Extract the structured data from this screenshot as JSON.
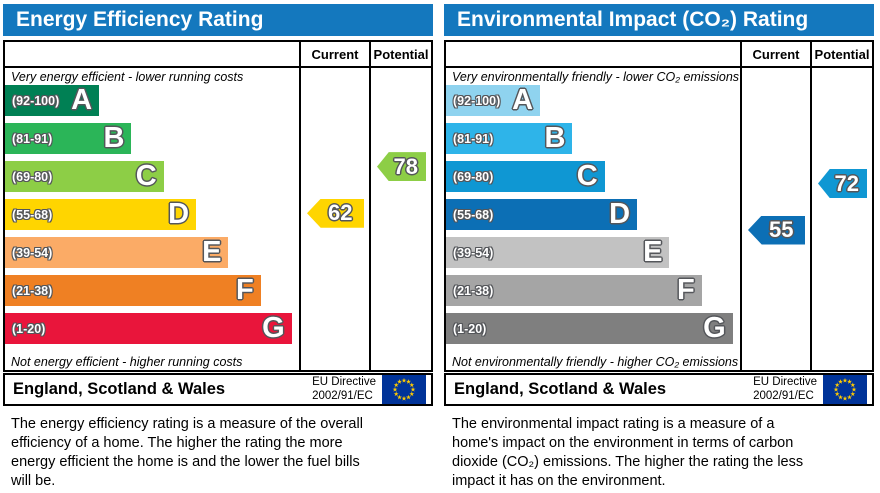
{
  "panels": [
    {
      "title": "Energy Efficiency Rating",
      "columns": {
        "current": "Current",
        "potential": "Potential"
      },
      "top_note": "Very energy efficient - lower running costs",
      "bottom_note": "Not energy efficient - higher running costs",
      "bands": [
        {
          "letter": "A",
          "range": "(92-100)",
          "lo": 92,
          "hi": 100,
          "color": "#008054",
          "width_pct": 32
        },
        {
          "letter": "B",
          "range": "(81-91)",
          "lo": 81,
          "hi": 91,
          "color": "#2bb558",
          "width_pct": 43
        },
        {
          "letter": "C",
          "range": "(69-80)",
          "lo": 69,
          "hi": 80,
          "color": "#8dce46",
          "width_pct": 54
        },
        {
          "letter": "D",
          "range": "(55-68)",
          "lo": 55,
          "hi": 68,
          "color": "#ffd500",
          "width_pct": 65
        },
        {
          "letter": "E",
          "range": "(39-54)",
          "lo": 39,
          "hi": 54,
          "color": "#fbab66",
          "width_pct": 76
        },
        {
          "letter": "F",
          "range": "(21-38)",
          "lo": 21,
          "hi": 38,
          "color": "#ef8023",
          "width_pct": 87
        },
        {
          "letter": "G",
          "range": "(1-20)",
          "lo": 1,
          "hi": 20,
          "color": "#e9153b",
          "width_pct": 97.5
        }
      ],
      "current": {
        "value": 62,
        "band": "D"
      },
      "potential": {
        "value": 78,
        "band": "C"
      },
      "footer": {
        "region": "England, Scotland & Wales",
        "directive_line1": "EU Directive",
        "directive_line2": "2002/91/EC"
      },
      "description": "The energy efficiency rating is a measure of the overall efficiency of a home. The higher the rating the more energy efficient the home is and the lower the fuel bills will be."
    },
    {
      "title": "Environmental Impact (CO₂) Rating",
      "columns": {
        "current": "Current",
        "potential": "Potential"
      },
      "top_note": "Very environmentally friendly - lower CO₂ emissions",
      "bottom_note": "Not environmentally friendly - higher CO₂ emissions",
      "bands": [
        {
          "letter": "A",
          "range": "(92-100)",
          "lo": 92,
          "hi": 100,
          "color": "#8fd3ef",
          "width_pct": 32
        },
        {
          "letter": "B",
          "range": "(81-91)",
          "lo": 81,
          "hi": 91,
          "color": "#2eb4e9",
          "width_pct": 43
        },
        {
          "letter": "C",
          "range": "(69-80)",
          "lo": 69,
          "hi": 80,
          "color": "#0f97d3",
          "width_pct": 54
        },
        {
          "letter": "D",
          "range": "(55-68)",
          "lo": 55,
          "hi": 68,
          "color": "#0c6fb5",
          "width_pct": 65
        },
        {
          "letter": "E",
          "range": "(39-54)",
          "lo": 39,
          "hi": 54,
          "color": "#c2c2c2",
          "width_pct": 76
        },
        {
          "letter": "F",
          "range": "(21-38)",
          "lo": 21,
          "hi": 38,
          "color": "#a5a5a5",
          "width_pct": 87
        },
        {
          "letter": "G",
          "range": "(1-20)",
          "lo": 1,
          "hi": 20,
          "color": "#7f7f7f",
          "width_pct": 97.5
        }
      ],
      "current": {
        "value": 55,
        "band": "D"
      },
      "potential": {
        "value": 72,
        "band": "C"
      },
      "footer": {
        "region": "England, Scotland & Wales",
        "directive_line1": "EU Directive",
        "directive_line2": "2002/91/EC"
      },
      "description": "The environmental impact rating is a measure of a home's impact on the environment in terms of carbon dioxide (CO₂) emissions. The higher the rating the less impact it has on the environment."
    }
  ],
  "chart_data": [
    {
      "type": "bar",
      "title": "Energy Efficiency Rating",
      "categories": [
        "A (92-100)",
        "B (81-91)",
        "C (69-80)",
        "D (55-68)",
        "E (39-54)",
        "F (21-38)",
        "G (1-20)"
      ],
      "band_colors": [
        "#008054",
        "#2bb558",
        "#8dce46",
        "#ffd500",
        "#fbab66",
        "#ef8023",
        "#e9153b"
      ],
      "markers": {
        "current": 62,
        "potential": 78
      },
      "value_range": [
        1,
        100
      ],
      "notes": [
        "Very energy efficient - lower running costs",
        "Not energy efficient - higher running costs"
      ]
    },
    {
      "type": "bar",
      "title": "Environmental Impact (CO₂) Rating",
      "categories": [
        "A (92-100)",
        "B (81-91)",
        "C (69-80)",
        "D (55-68)",
        "E (39-54)",
        "F (21-38)",
        "G (1-20)"
      ],
      "band_colors": [
        "#8fd3ef",
        "#2eb4e9",
        "#0f97d3",
        "#0c6fb5",
        "#c2c2c2",
        "#a5a5a5",
        "#7f7f7f"
      ],
      "markers": {
        "current": 55,
        "potential": 72
      },
      "value_range": [
        1,
        100
      ],
      "notes": [
        "Very environmentally friendly - lower CO₂ emissions",
        "Not environmentally friendly - higher CO₂ emissions"
      ]
    }
  ],
  "theme": {
    "header_blue": "#1478be",
    "flag_blue": "#003399",
    "flag_star_yellow": "#ffcc00",
    "outline_gray": "#54565a"
  }
}
